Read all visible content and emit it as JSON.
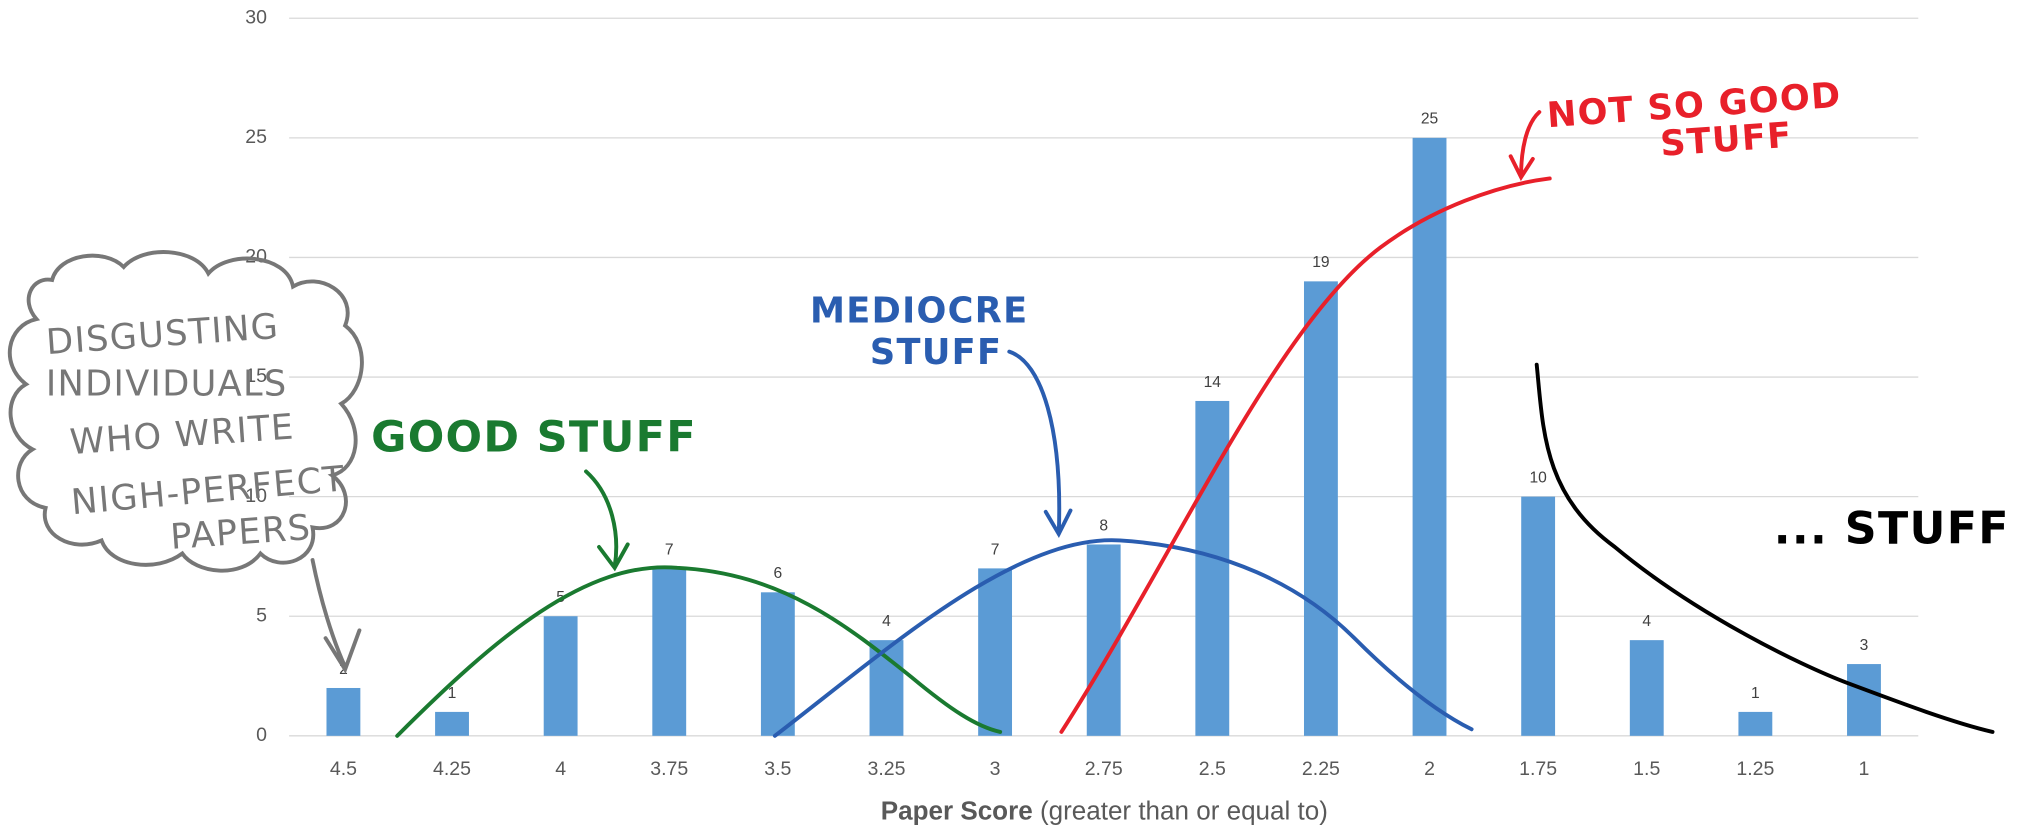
{
  "chart_data": {
    "type": "bar",
    "categories": [
      "4.5",
      "4.25",
      "4",
      "3.75",
      "3.5",
      "3.25",
      "3",
      "2.75",
      "2.5",
      "2.25",
      "2",
      "1.75",
      "1.5",
      "1.25",
      "1"
    ],
    "values": [
      2,
      1,
      5,
      7,
      6,
      4,
      7,
      8,
      14,
      19,
      25,
      10,
      4,
      1,
      3
    ],
    "color": "#5b9bd5",
    "ylim": [
      0,
      30
    ],
    "yticks": [
      0,
      5,
      10,
      15,
      20,
      25,
      30
    ],
    "grid": true,
    "x_label": {
      "bold": "Paper Score",
      "rest": "(greater than or equal to)"
    },
    "annotations": {
      "cloud": [
        "DISGUSTING",
        "INDIVIDUALS",
        "WHO WRITE",
        "NIGH-PERFECT",
        "PAPERS"
      ],
      "good": [
        "GOOD STUFF"
      ],
      "mediocre": [
        "MEDIOCRE",
        "STUFF"
      ],
      "not_so_good": [
        "NOT SO GOOD",
        "STUFF"
      ],
      "other": [
        "... STUFF"
      ]
    }
  }
}
